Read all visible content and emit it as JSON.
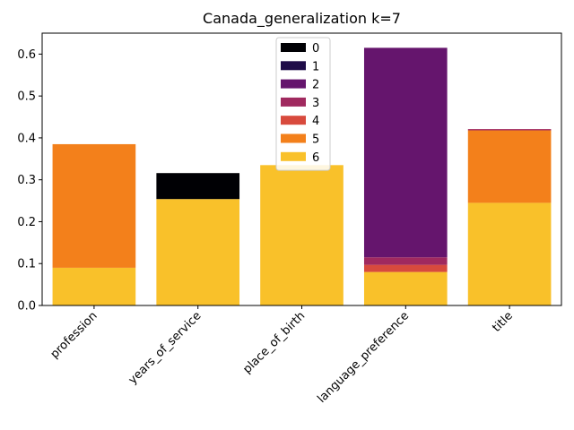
{
  "chart_data": {
    "type": "bar",
    "stacked": true,
    "title": "Canada_generalization k=7",
    "xlabel": "",
    "ylabel": "",
    "categories": [
      "profession",
      "years_of_service",
      "place_of_birth",
      "language_preference",
      "title"
    ],
    "ylim": [
      0,
      0.65
    ],
    "yticks": [
      "0.0",
      "0.1",
      "0.2",
      "0.3",
      "0.4",
      "0.5",
      "0.6"
    ],
    "grid": false,
    "legend_position": "top-center",
    "series": [
      {
        "name": "6",
        "color": "#f9c12a",
        "values": [
          0.09,
          0.254,
          0.335,
          0.08,
          0.245
        ]
      },
      {
        "name": "5",
        "color": "#f3801b",
        "values": [
          0.295,
          0.0,
          0.0,
          0.0,
          0.173
        ]
      },
      {
        "name": "4",
        "color": "#d84a3d",
        "values": [
          0.0,
          0.0,
          0.0,
          0.017,
          0.0
        ]
      },
      {
        "name": "3",
        "color": "#a0295f",
        "values": [
          0.0,
          0.0,
          0.0,
          0.018,
          0.003
        ]
      },
      {
        "name": "2",
        "color": "#65156d",
        "values": [
          0.0,
          0.0,
          0.0,
          0.5,
          0.0
        ]
      },
      {
        "name": "1",
        "color": "#1f0c48",
        "values": [
          0.0,
          0.0,
          0.0,
          0.0,
          0.0
        ]
      },
      {
        "name": "0",
        "color": "#000004",
        "values": [
          0.0,
          0.062,
          0.0,
          0.0,
          0.0
        ]
      }
    ],
    "legend_order": [
      "0",
      "1",
      "2",
      "3",
      "4",
      "5",
      "6"
    ]
  }
}
